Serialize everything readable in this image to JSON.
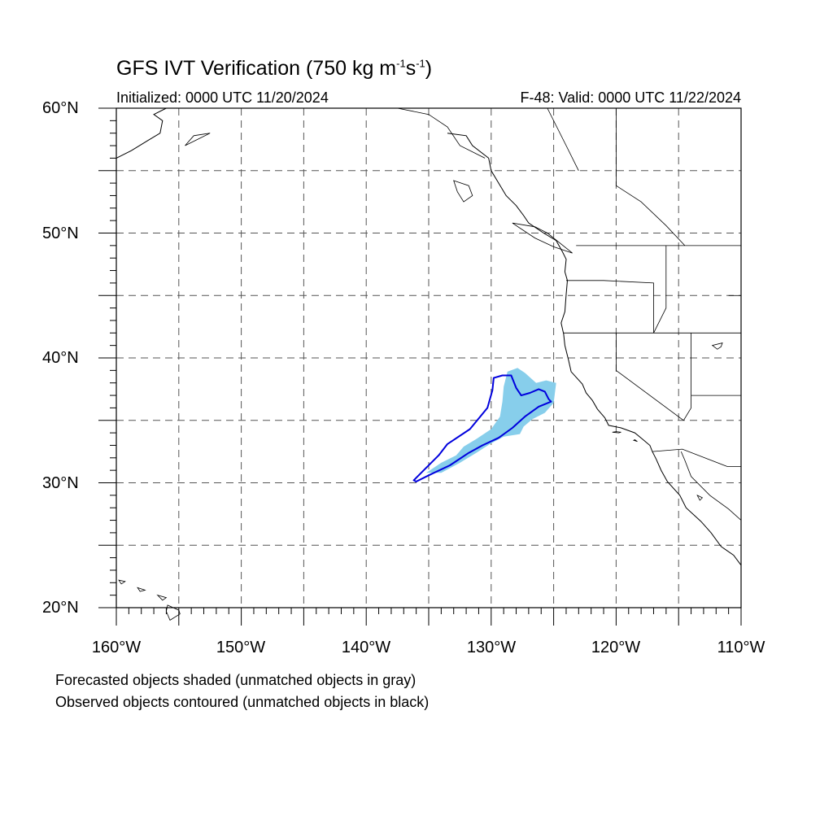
{
  "title": {
    "main": "GFS IVT Verification (750 kg m",
    "exp1": "-1",
    "mid": "s",
    "exp2": "-1",
    "end": ")"
  },
  "initialized": "Initialized: 0000 UTC 11/20/2024",
  "valid": "F-48: Valid: 0000 UTC 11/22/2024",
  "lat_labels": [
    "60°N",
    "50°N",
    "40°N",
    "30°N",
    "20°N"
  ],
  "lon_labels": [
    "160°W",
    "150°W",
    "140°W",
    "130°W",
    "120°W",
    "110°W"
  ],
  "notes": [
    "Forecasted objects shaded (unmatched objects in gray)",
    "Observed objects contoured (unmatched objects in black)"
  ],
  "colors": {
    "forecast_fill": "#87ceeb",
    "observed_contour": "#0000dd",
    "coast": "#000000",
    "grid": "#555555"
  },
  "map_extent": {
    "lon": [
      -160,
      -110
    ],
    "lat": [
      20,
      60
    ]
  },
  "forecast_object": [
    [
      -135.2,
      30.8
    ],
    [
      -134.0,
      31.6
    ],
    [
      -132.8,
      32.2
    ],
    [
      -132.2,
      32.9
    ],
    [
      -131.2,
      33.5
    ],
    [
      -130.0,
      34.3
    ],
    [
      -129.3,
      35.3
    ],
    [
      -129.1,
      36.5
    ],
    [
      -129.0,
      37.7
    ],
    [
      -128.7,
      38.9
    ],
    [
      -127.9,
      39.2
    ],
    [
      -127.3,
      38.8
    ],
    [
      -126.4,
      38.0
    ],
    [
      -125.6,
      38.2
    ],
    [
      -124.8,
      38.0
    ],
    [
      -125.0,
      36.4
    ],
    [
      -125.7,
      35.6
    ],
    [
      -126.7,
      35.1
    ],
    [
      -127.4,
      34.5
    ],
    [
      -127.7,
      33.9
    ],
    [
      -129.0,
      33.7
    ],
    [
      -130.1,
      33.1
    ],
    [
      -131.2,
      32.4
    ],
    [
      -132.5,
      31.6
    ],
    [
      -134.0,
      30.8
    ]
  ],
  "observed_object": [
    [
      -136.2,
      30.2
    ],
    [
      -135.5,
      30.9
    ],
    [
      -134.2,
      32.2
    ],
    [
      -133.5,
      33.1
    ],
    [
      -131.7,
      34.3
    ],
    [
      -130.3,
      36.0
    ],
    [
      -129.9,
      37.4
    ],
    [
      -129.8,
      38.4
    ],
    [
      -129.1,
      38.6
    ],
    [
      -128.4,
      38.6
    ],
    [
      -128.0,
      37.6
    ],
    [
      -127.6,
      37.0
    ],
    [
      -126.9,
      37.2
    ],
    [
      -126.2,
      37.5
    ],
    [
      -125.7,
      37.3
    ],
    [
      -125.4,
      36.7
    ],
    [
      -125.2,
      36.5
    ],
    [
      -126.2,
      36.1
    ],
    [
      -127.3,
      35.3
    ],
    [
      -128.3,
      34.4
    ],
    [
      -129.4,
      33.6
    ],
    [
      -130.7,
      33.0
    ],
    [
      -131.8,
      32.4
    ],
    [
      -133.3,
      31.4
    ],
    [
      -135.0,
      30.6
    ],
    [
      -136.0,
      30.1
    ]
  ],
  "coastline": [
    [
      -133.5,
      58.0
    ],
    [
      -132.0,
      57.8
    ],
    [
      -131.5,
      57.0
    ],
    [
      -130.2,
      56.0
    ],
    [
      -130.0,
      55.0
    ],
    [
      -129.4,
      54.0
    ],
    [
      -128.8,
      53.0
    ],
    [
      -128.0,
      52.2
    ],
    [
      -127.4,
      51.4
    ],
    [
      -127.0,
      50.8
    ],
    [
      -125.8,
      50.0
    ],
    [
      -124.8,
      49.4
    ],
    [
      -124.3,
      48.5
    ],
    [
      -124.0,
      47.9
    ],
    [
      -124.1,
      46.9
    ],
    [
      -123.9,
      46.2
    ],
    [
      -124.0,
      45.1
    ],
    [
      -124.1,
      43.7
    ],
    [
      -124.4,
      42.8
    ],
    [
      -124.2,
      41.9
    ],
    [
      -124.1,
      41.0
    ],
    [
      -123.8,
      39.8
    ],
    [
      -123.6,
      38.9
    ],
    [
      -122.7,
      37.9
    ],
    [
      -122.4,
      37.2
    ],
    [
      -121.9,
      36.6
    ],
    [
      -121.5,
      35.9
    ],
    [
      -120.9,
      35.2
    ],
    [
      -120.6,
      34.6
    ],
    [
      -119.6,
      34.4
    ],
    [
      -118.5,
      34.0
    ],
    [
      -117.9,
      33.5
    ],
    [
      -117.3,
      33.0
    ],
    [
      -117.1,
      32.5
    ],
    [
      -116.8,
      31.9
    ],
    [
      -116.4,
      31.0
    ],
    [
      -115.9,
      30.1
    ],
    [
      -114.9,
      29.0
    ],
    [
      -114.4,
      28.0
    ],
    [
      -113.2,
      26.9
    ],
    [
      -112.4,
      26.0
    ],
    [
      -111.6,
      24.9
    ],
    [
      -110.6,
      24.2
    ],
    [
      -110.0,
      23.4
    ]
  ],
  "alaska_coast": [
    [
      -160,
      56.0
    ],
    [
      -158.8,
      56.6
    ],
    [
      -157.5,
      57.4
    ],
    [
      -156.5,
      58.0
    ],
    [
      -156.3,
      59.0
    ],
    [
      -157.0,
      59.5
    ],
    [
      -156.0,
      60.0
    ]
  ],
  "borders": [
    [
      [
        -123.2,
        49.0
      ],
      [
        -110,
        49.0
      ]
    ],
    [
      [
        -124.2,
        42.0
      ],
      [
        -110,
        42.0
      ]
    ],
    [
      [
        -120.0,
        42.0
      ],
      [
        -120.0,
        39.0
      ],
      [
        -114.6,
        35.0
      ]
    ],
    [
      [
        -124.0,
        46.2
      ],
      [
        -121.0,
        46.2
      ],
      [
        -117.0,
        46.0
      ],
      [
        -117.0,
        42.0
      ]
    ],
    [
      [
        -116.0,
        49.0
      ],
      [
        -116.0,
        44.0
      ],
      [
        -117.0,
        42.0
      ]
    ],
    [
      [
        -117.1,
        32.5
      ],
      [
        -114.7,
        32.7
      ],
      [
        -111.1,
        31.3
      ],
      [
        -110,
        31.3
      ]
    ],
    [
      [
        -114.6,
        35.0
      ],
      [
        -114.0,
        36.0
      ],
      [
        -114.0,
        42.0
      ]
    ],
    [
      [
        -114.0,
        37.0
      ],
      [
        -110,
        37.0
      ]
    ],
    [
      [
        -111.0,
        45.0
      ],
      [
        -110,
        45.0
      ]
    ],
    [
      [
        -123.0,
        55.0
      ],
      [
        -124.0,
        57.0
      ],
      [
        -125.5,
        60.0
      ]
    ],
    [
      [
        -137.5,
        60.0
      ],
      [
        -135.0,
        59.5
      ],
      [
        -133.5,
        58.5
      ],
      [
        -132.5,
        57.0
      ],
      [
        -130.5,
        56.0
      ]
    ],
    [
      [
        -120.0,
        60.0
      ],
      [
        -120.0,
        53.8
      ],
      [
        -118.0,
        52.5
      ],
      [
        -116.0,
        50.6
      ],
      [
        -114.5,
        49.0
      ]
    ],
    [
      [
        -114.8,
        32.5
      ],
      [
        -114.5,
        31.8
      ],
      [
        -114.0,
        30.5
      ],
      [
        -112.5,
        29.0
      ],
      [
        -111.0,
        27.9
      ],
      [
        -110,
        27.0
      ]
    ]
  ],
  "islands": [
    [
      [
        -120.3,
        34.05
      ],
      [
        -119.8,
        34.0
      ],
      [
        -119.6,
        34.05
      ],
      [
        -120.0,
        34.1
      ],
      [
        -120.3,
        34.05
      ]
    ],
    [
      [
        -118.6,
        33.4
      ],
      [
        -118.3,
        33.3
      ],
      [
        -118.5,
        33.45
      ],
      [
        -118.6,
        33.4
      ]
    ],
    [
      [
        -155.9,
        20.2
      ],
      [
        -155.0,
        19.8
      ],
      [
        -154.9,
        19.5
      ],
      [
        -155.7,
        19.0
      ],
      [
        -156.0,
        19.7
      ],
      [
        -155.9,
        20.2
      ]
    ],
    [
      [
        -156.7,
        21.0
      ],
      [
        -156.0,
        20.8
      ],
      [
        -156.3,
        20.6
      ],
      [
        -156.7,
        21.0
      ]
    ],
    [
      [
        -158.3,
        21.6
      ],
      [
        -157.7,
        21.4
      ],
      [
        -158.1,
        21.3
      ],
      [
        -158.3,
        21.6
      ]
    ],
    [
      [
        -159.8,
        22.2
      ],
      [
        -159.3,
        22.1
      ],
      [
        -159.6,
        21.9
      ],
      [
        -159.8,
        22.2
      ]
    ],
    [
      [
        -133.0,
        54.2
      ],
      [
        -131.8,
        53.8
      ],
      [
        -131.5,
        53.0
      ],
      [
        -132.2,
        52.5
      ],
      [
        -132.7,
        53.3
      ],
      [
        -133.0,
        54.2
      ]
    ],
    [
      [
        -128.3,
        50.8
      ],
      [
        -126.5,
        50.5
      ],
      [
        -125.5,
        50.0
      ],
      [
        -124.0,
        48.8
      ],
      [
        -123.5,
        48.4
      ],
      [
        -125.0,
        48.9
      ],
      [
        -126.5,
        49.6
      ],
      [
        -128.3,
        50.8
      ]
    ],
    [
      [
        -111.5,
        41.2
      ],
      [
        -111.6,
        40.9
      ],
      [
        -111.9,
        40.7
      ],
      [
        -112.3,
        41.0
      ],
      [
        -111.5,
        41.2
      ]
    ],
    [
      [
        -152.5,
        58.0
      ],
      [
        -153.5,
        57.5
      ],
      [
        -154.5,
        57.0
      ],
      [
        -153.8,
        57.8
      ],
      [
        -152.5,
        58.0
      ]
    ],
    [
      [
        -113.5,
        29.0
      ],
      [
        -113.1,
        28.8
      ],
      [
        -113.3,
        28.6
      ],
      [
        -113.5,
        29.0
      ]
    ]
  ]
}
